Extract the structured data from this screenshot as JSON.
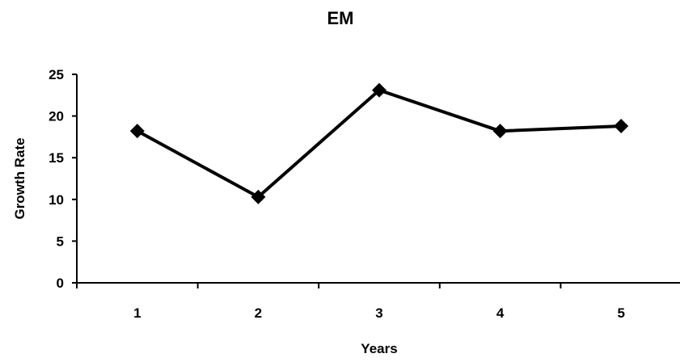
{
  "chart_data": {
    "type": "line",
    "title": "EM",
    "xlabel": "Years",
    "ylabel": "Growth Rate",
    "categories": [
      "1",
      "2",
      "3",
      "4",
      "5"
    ],
    "series": [
      {
        "values": [
          18.2,
          10.3,
          23.1,
          18.2,
          18.8
        ]
      }
    ],
    "ylim": [
      0,
      25
    ],
    "y_ticks": [
      "0",
      "5",
      "10",
      "15",
      "20",
      "25"
    ],
    "grid": false,
    "legend": "none",
    "marker": "diamond",
    "line_color": "#000000"
  }
}
